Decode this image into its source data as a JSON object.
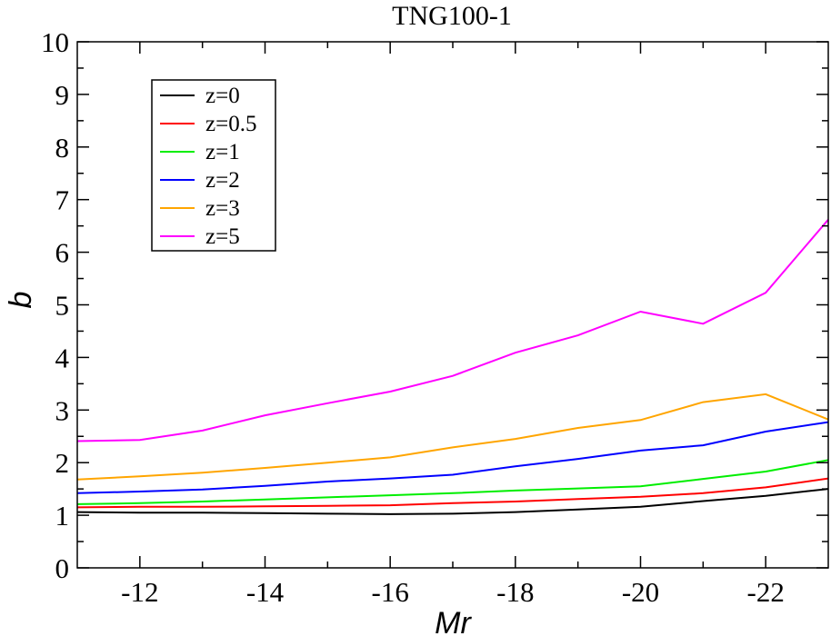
{
  "chart_data": {
    "type": "line",
    "title": "TNG100-1",
    "xlabel": "Mr",
    "ylabel": "b",
    "xlim": [
      -11,
      -23
    ],
    "ylim": [
      0,
      10
    ],
    "x_ticks": [
      -12,
      -14,
      -16,
      -18,
      -20,
      -22
    ],
    "x_tick_labels": [
      "-12",
      "-14",
      "-16",
      "-18",
      "-20",
      "-22"
    ],
    "y_ticks": [
      0,
      1,
      2,
      3,
      4,
      5,
      6,
      7,
      8,
      9,
      10
    ],
    "y_tick_labels": [
      "0",
      "1",
      "2",
      "3",
      "4",
      "5",
      "6",
      "7",
      "8",
      "9",
      "10"
    ],
    "grid": false,
    "legend_position": "top-left",
    "x": [
      -11,
      -12,
      -13,
      -14,
      -15,
      -16,
      -17,
      -18,
      -19,
      -20,
      -21,
      -22,
      -23
    ],
    "series": [
      {
        "name": "z=0",
        "color": "#000000",
        "values": [
          1.06,
          1.05,
          1.05,
          1.04,
          1.03,
          1.02,
          1.03,
          1.06,
          1.11,
          1.16,
          1.27,
          1.37,
          1.5
        ]
      },
      {
        "name": "z=0.5",
        "color": "#ff0000",
        "values": [
          1.15,
          1.16,
          1.16,
          1.17,
          1.18,
          1.19,
          1.23,
          1.26,
          1.31,
          1.35,
          1.42,
          1.53,
          1.7
        ]
      },
      {
        "name": "z=1",
        "color": "#00ee00",
        "values": [
          1.21,
          1.23,
          1.26,
          1.3,
          1.34,
          1.38,
          1.42,
          1.47,
          1.51,
          1.55,
          1.69,
          1.83,
          2.05
        ]
      },
      {
        "name": "z=2",
        "color": "#0000ff",
        "values": [
          1.42,
          1.45,
          1.49,
          1.56,
          1.64,
          1.7,
          1.77,
          1.93,
          2.07,
          2.23,
          2.33,
          2.59,
          2.77
        ]
      },
      {
        "name": "z=3",
        "color": "#ffa500",
        "values": [
          1.68,
          1.74,
          1.81,
          1.9,
          2.0,
          2.1,
          2.29,
          2.45,
          2.66,
          2.81,
          3.15,
          3.3,
          2.82
        ]
      },
      {
        "name": "z=5",
        "color": "#ff00ff",
        "values": [
          2.41,
          2.43,
          2.61,
          2.9,
          3.13,
          3.35,
          3.65,
          4.09,
          4.42,
          4.87,
          4.64,
          5.23,
          6.62
        ]
      }
    ]
  }
}
